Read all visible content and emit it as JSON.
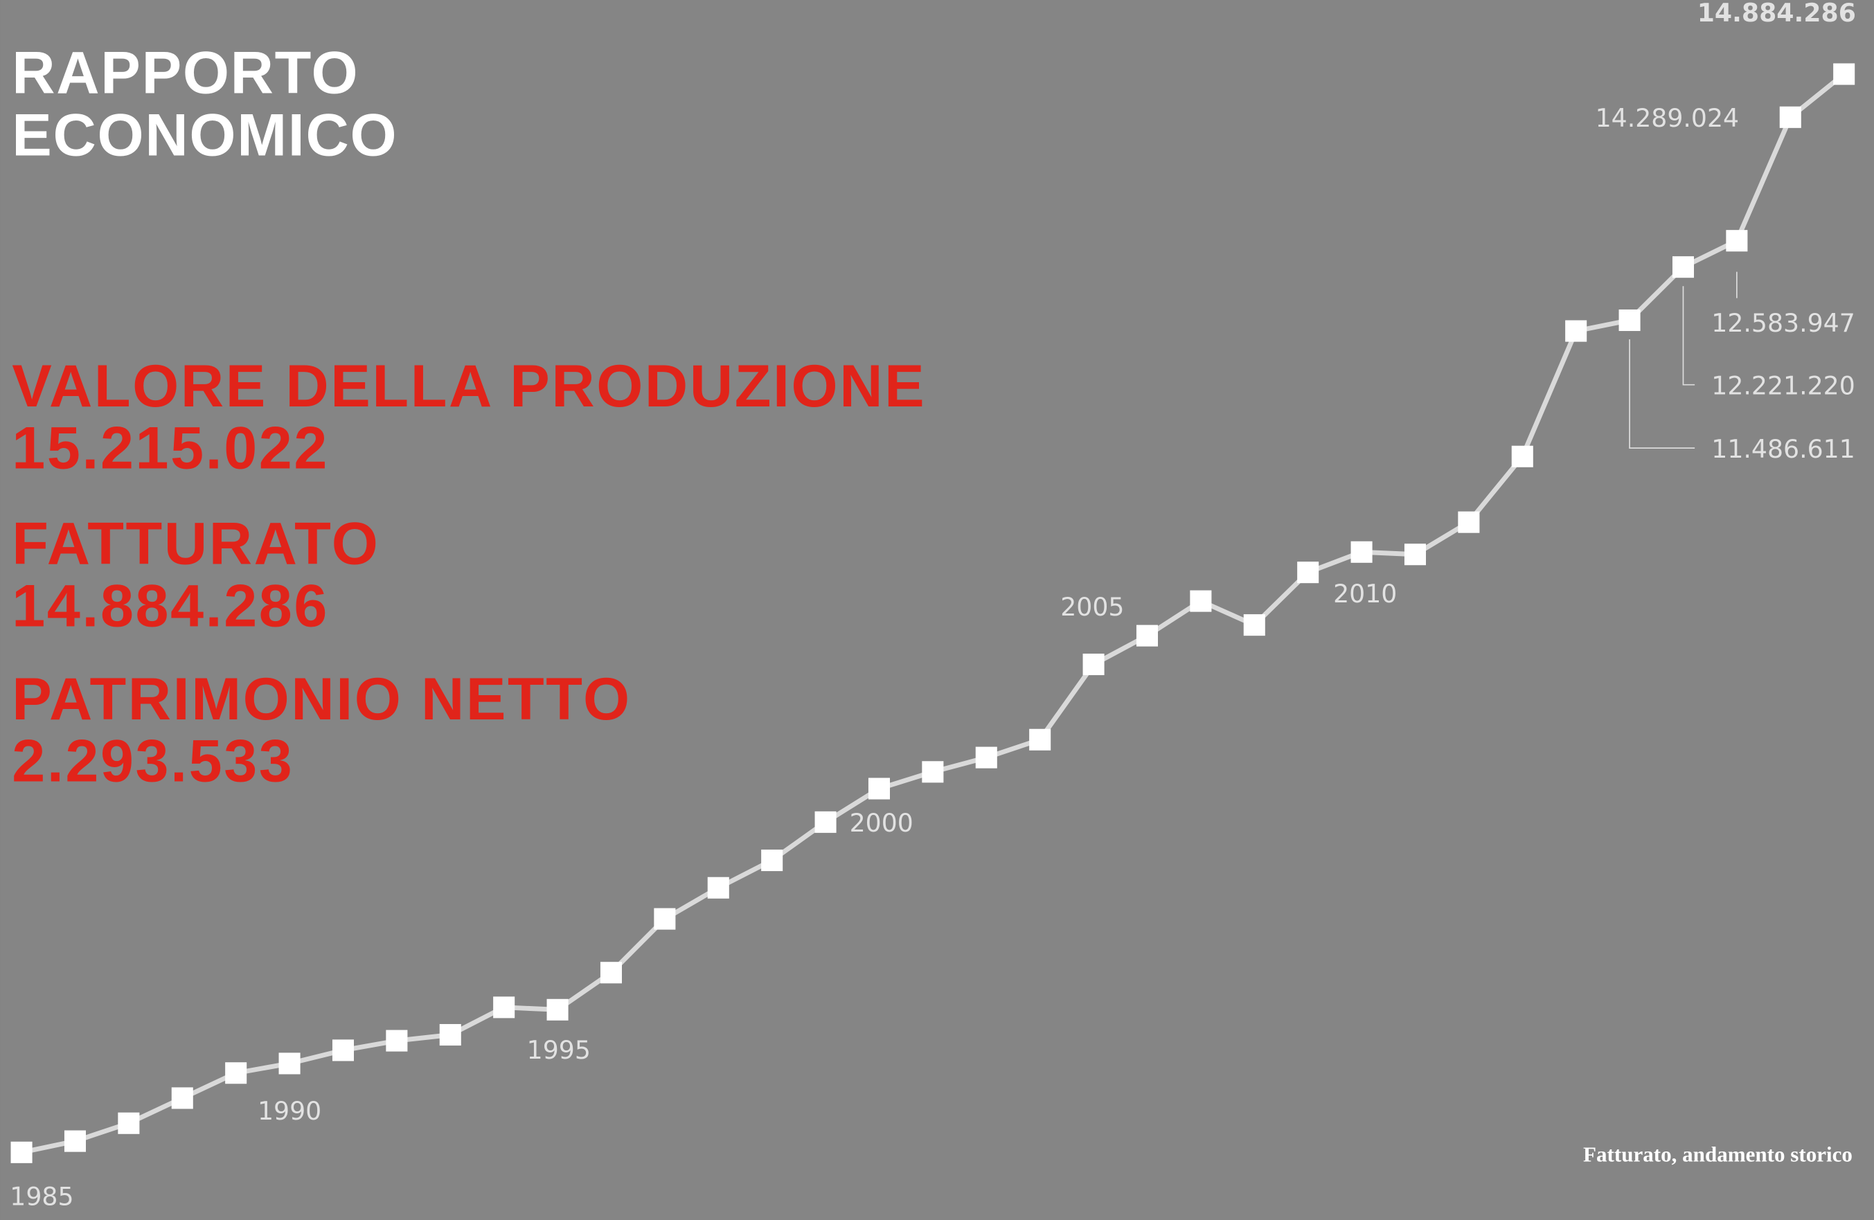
{
  "header": {
    "title_lines": [
      "RAPPORTO",
      "ECONOMICO"
    ]
  },
  "highlights": [
    {
      "label": "VALORE DELLA PRODUZIONE",
      "value": "15.215.022"
    },
    {
      "label": "FATTURATO",
      "value": "14.884.286"
    },
    {
      "label": "PATRIMONIO NETTO",
      "value": "2.293.533"
    }
  ],
  "chart_data": {
    "type": "line",
    "caption": "Fatturato, andamento storico",
    "categories": [
      "1985",
      null,
      null,
      null,
      null,
      "1990",
      null,
      null,
      null,
      null,
      "1995",
      null,
      null,
      null,
      null,
      "2000",
      null,
      null,
      null,
      null,
      "2005",
      null,
      null,
      null,
      null,
      "2010",
      null,
      null,
      null,
      null,
      null,
      null,
      null,
      null,
      null
    ],
    "values": [
      0,
      155000,
      402000,
      749000,
      1095000,
      1227000,
      1409000,
      1541000,
      1623000,
      2002000,
      1969000,
      2481000,
      3223000,
      3652000,
      4031000,
      4559000,
      5021000,
      5252000,
      5450000,
      5697000,
      6736000,
      7132000,
      7610000,
      7280000,
      8006000,
      8287000,
      8254000,
      8699000,
      9606000,
      11338000,
      11486611,
      12221220,
      12583947,
      14289024,
      14884286
    ],
    "value_labels": [
      null,
      null,
      null,
      null,
      null,
      null,
      null,
      null,
      null,
      null,
      null,
      null,
      null,
      null,
      null,
      null,
      null,
      null,
      null,
      null,
      null,
      null,
      null,
      null,
      null,
      null,
      null,
      null,
      null,
      null,
      "11.486.611",
      "12.221.220",
      "12.583.947",
      "14.289.024",
      "14.884.286"
    ],
    "color": "#d9d9d9",
    "marker_color": "#ffffff",
    "ylim": [
      0,
      15000000
    ]
  }
}
